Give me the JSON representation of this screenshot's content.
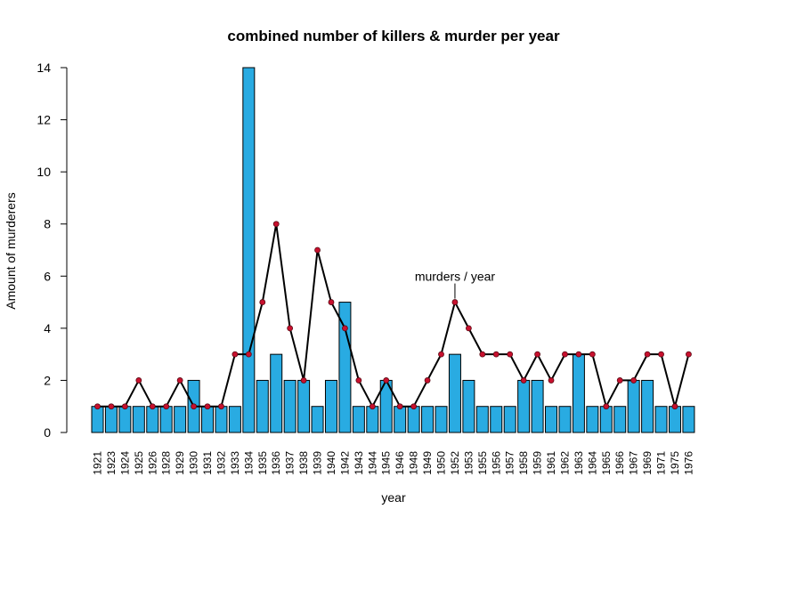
{
  "chart_data": {
    "type": "bar",
    "title": "combined number of killers & murder per year",
    "xlabel": "year",
    "ylabel": "Amount of murderers",
    "ylim": [
      0,
      14
    ],
    "yticks": [
      0,
      2,
      4,
      6,
      8,
      10,
      12,
      14
    ],
    "categories": [
      "1921",
      "1923",
      "1924",
      "1925",
      "1926",
      "1928",
      "1929",
      "1930",
      "1931",
      "1932",
      "1933",
      "1934",
      "1935",
      "1936",
      "1937",
      "1938",
      "1939",
      "1940",
      "1942",
      "1943",
      "1944",
      "1945",
      "1946",
      "1948",
      "1949",
      "1950",
      "1952",
      "1953",
      "1955",
      "1956",
      "1957",
      "1958",
      "1959",
      "1961",
      "1962",
      "1963",
      "1964",
      "1965",
      "1966",
      "1967",
      "1969",
      "1971",
      "1975",
      "1976"
    ],
    "series": [
      {
        "type": "bar",
        "values": [
          1,
          1,
          1,
          1,
          1,
          1,
          1,
          2,
          1,
          1,
          1,
          14,
          2,
          3,
          2,
          2,
          1,
          2,
          5,
          1,
          1,
          2,
          1,
          1,
          1,
          1,
          3,
          2,
          1,
          1,
          1,
          2,
          2,
          1,
          1,
          3,
          1,
          1,
          1,
          2,
          2,
          1,
          1,
          1
        ]
      },
      {
        "type": "line",
        "values": [
          1,
          1,
          1,
          2,
          1,
          1,
          2,
          1,
          1,
          1,
          3,
          3,
          5,
          8,
          4,
          2,
          7,
          5,
          4,
          2,
          1,
          2,
          1,
          1,
          2,
          3,
          5,
          4,
          3,
          3,
          3,
          2,
          3,
          2,
          3,
          3,
          3,
          1,
          2,
          2,
          3,
          3,
          1,
          3
        ]
      }
    ],
    "annotations": [
      {
        "text": "murders / year",
        "category": "1952",
        "value": 5
      }
    ],
    "colors": {
      "bar_fill": "#29ABE2",
      "bar_stroke": "#000000",
      "line": "#000000",
      "point": "#C8102E"
    },
    "grid": false,
    "legend": "none"
  }
}
